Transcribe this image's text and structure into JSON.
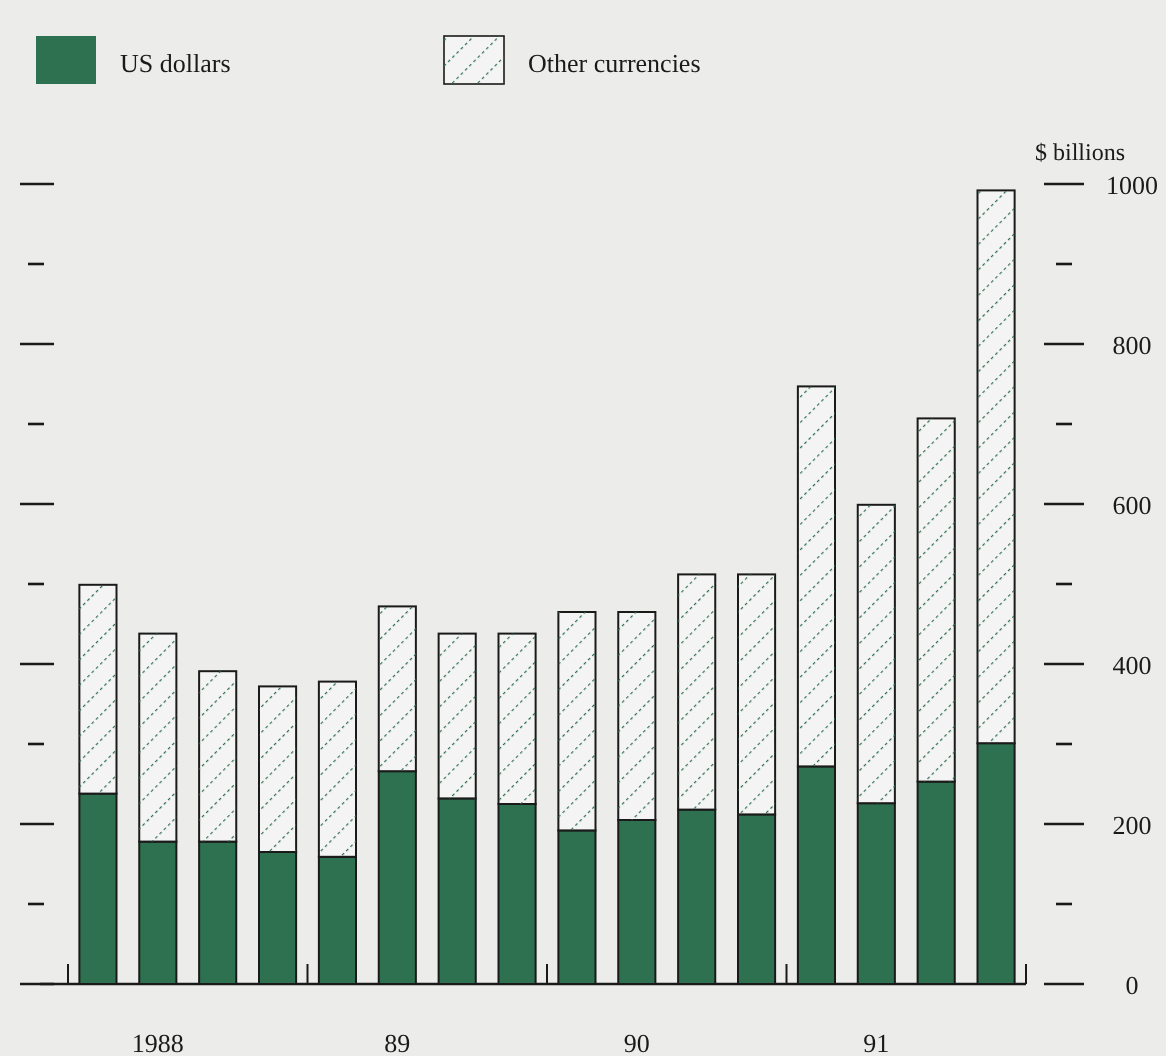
{
  "chart_data": {
    "type": "bar",
    "stacked": true,
    "ylabel": "$ billions",
    "categories": [
      null,
      "1988",
      null,
      null,
      null,
      "89",
      null,
      null,
      null,
      "90",
      null,
      null,
      null,
      "91",
      null,
      null
    ],
    "ylim": [
      0,
      1000
    ],
    "yticks": [
      0,
      {
        "value": 100,
        "label": null
      },
      200,
      {
        "value": 300,
        "label": null
      },
      400,
      {
        "value": 500,
        "label": null
      },
      600,
      {
        "value": 700,
        "label": null
      },
      800,
      {
        "value": 900,
        "label": null
      },
      1000
    ],
    "legend": "top left",
    "grid": false,
    "series": [
      {
        "name": "US dollars",
        "color": "#2e7150",
        "values": [
          238,
          178,
          178,
          165,
          159,
          266,
          232,
          225,
          192,
          205,
          218,
          212,
          272,
          226,
          253,
          301
        ]
      },
      {
        "name": "Other currencies",
        "color": "#f4f4f4",
        "values": [
          261,
          260,
          213,
          207,
          219,
          206,
          206,
          213,
          273,
          260,
          294,
          300,
          475,
          373,
          454,
          691
        ]
      }
    ]
  }
}
